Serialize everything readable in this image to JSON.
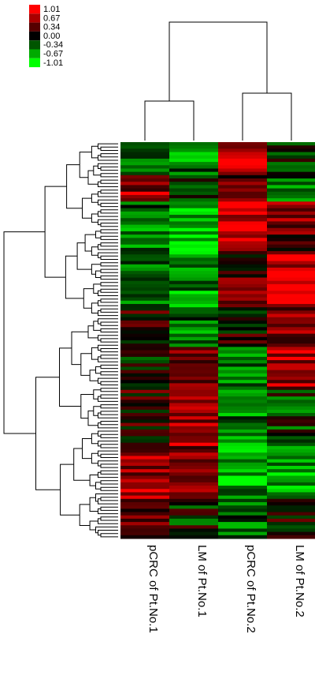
{
  "chart_data": {
    "type": "heatmap",
    "title": "",
    "columns": [
      "pCRC of Pt.No.1",
      "LM of Pt.No.1",
      "pCRC of Pt.No.2",
      "LM of Pt.No.2"
    ],
    "color_scale": {
      "labels": [
        "1.01",
        "0.67",
        "0.34",
        "0.00",
        "-0.34",
        "-0.67",
        "-1.01"
      ],
      "values": [
        1.01,
        0.67,
        0.34,
        0.0,
        -0.34,
        -0.67,
        -1.01
      ],
      "colors": [
        "#ff0000",
        "#aa0000",
        "#550000",
        "#000000",
        "#005500",
        "#00aa00",
        "#00ff00"
      ]
    },
    "column_dendrogram": {
      "merges": [
        {
          "left": "pCRC of Pt.No.1",
          "right": "LM of Pt.No.1",
          "height": 0.5
        },
        {
          "left": "pCRC of Pt.No.2",
          "right": "LM of Pt.No.2",
          "height": 0.6
        },
        {
          "left": "cluster-1",
          "right": "cluster-2",
          "height": 1.0
        }
      ]
    },
    "row_count": 120,
    "row_value_profiles": [
      {
        "rows": [
          0,
          10
        ],
        "values": [
          -0.3,
          -0.5,
          0.8,
          -0.2
        ]
      },
      {
        "rows": [
          10,
          18
        ],
        "values": [
          0.6,
          -0.2,
          0.4,
          -0.4
        ]
      },
      {
        "rows": [
          18,
          33
        ],
        "values": [
          -0.4,
          -0.8,
          0.9,
          0.4
        ]
      },
      {
        "rows": [
          33,
          50
        ],
        "values": [
          -0.3,
          -0.6,
          0.3,
          0.8
        ]
      },
      {
        "rows": [
          50,
          62
        ],
        "values": [
          0.1,
          -0.4,
          0.1,
          0.6
        ]
      },
      {
        "rows": [
          62,
          75
        ],
        "values": [
          -0.1,
          0.3,
          -0.4,
          0.6
        ]
      },
      {
        "rows": [
          75,
          92
        ],
        "values": [
          0.2,
          0.7,
          -0.5,
          -0.2
        ]
      },
      {
        "rows": [
          92,
          108
        ],
        "values": [
          0.6,
          0.5,
          -0.6,
          -0.6
        ]
      },
      {
        "rows": [
          108,
          120
        ],
        "values": [
          0.5,
          -0.1,
          -0.3,
          0.1
        ]
      }
    ]
  }
}
